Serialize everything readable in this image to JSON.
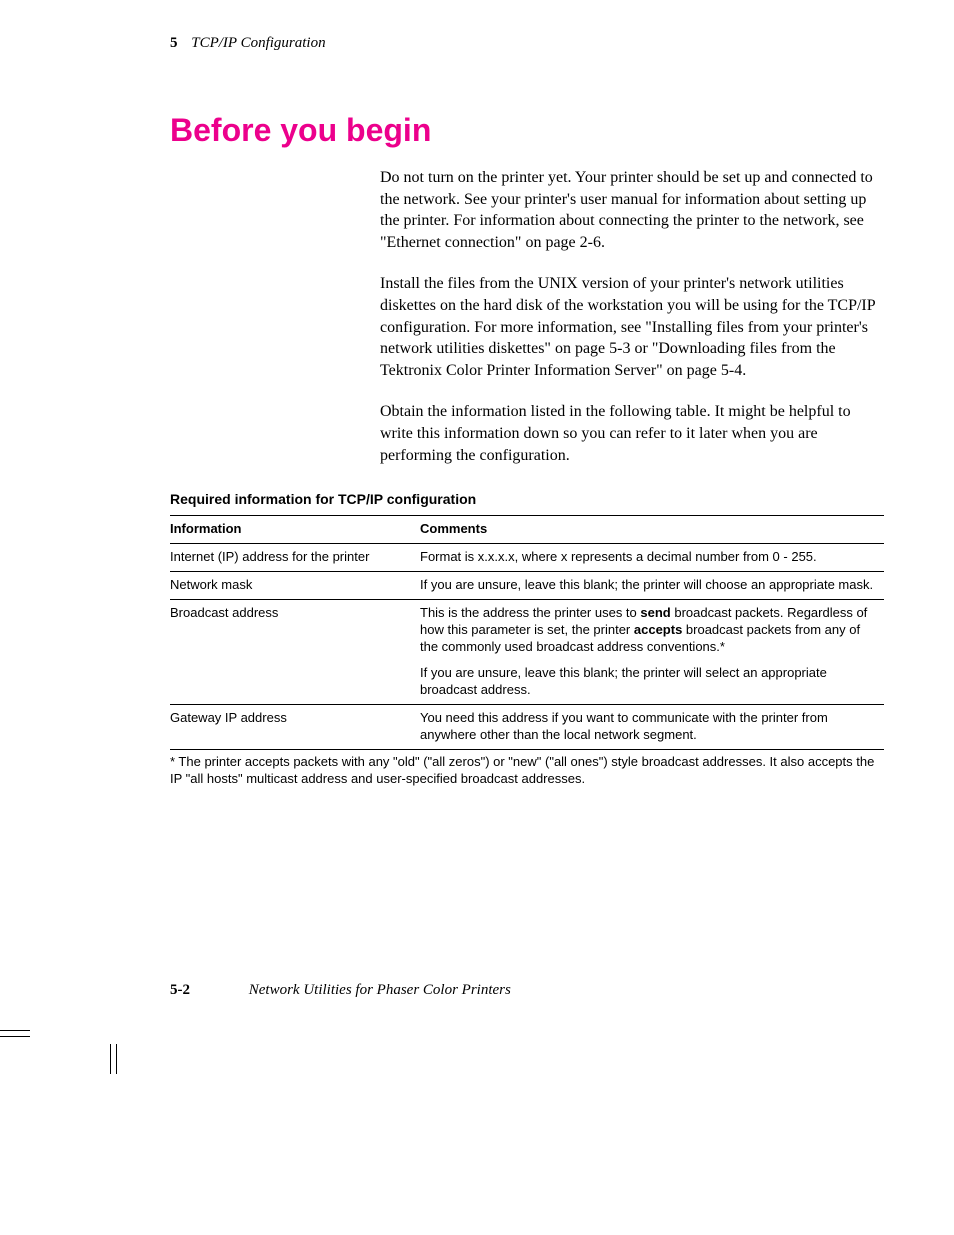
{
  "header": {
    "chapter_number": "5",
    "chapter_title": "TCP/IP Configuration"
  },
  "section": {
    "title": "Before you begin",
    "title_color": "#ec008c",
    "paragraphs": [
      "Do not turn on the printer yet.  Your printer should be set up and connected to the network.  See your printer's user manual for information about setting up the printer.  For information about connecting the printer to the network, see \"Ethernet connection\" on page 2-6.",
      "Install the files from the UNIX version of your printer's network utilities diskettes on the hard disk of the workstation you will be using for the TCP/IP configuration.  For more information, see \"Installing files from your printer's network utilities diskettes\" on page 5-3 or \"Downloading files from the Tektronix Color Printer Information Server\" on page 5-4.",
      "Obtain the information listed in the following table.  It might be helpful to write this information down so you can refer to it later when you are performing the configuration."
    ]
  },
  "table": {
    "caption": "Required information for TCP/IP configuration",
    "columns": [
      "Information",
      "Comments"
    ],
    "rows": [
      {
        "info": "Internet (IP) address for the printer",
        "comment_html": "Format is x.x.x.x, where x represents a decimal number from 0 - 255."
      },
      {
        "info": "Network mask",
        "comment_html": "If you are unsure, leave this blank; the printer will choose an appropriate mask."
      },
      {
        "info": "Broadcast address",
        "comment_p1_pre": "This is the address the printer uses to ",
        "comment_p1_b1": "send",
        "comment_p1_mid": " broadcast packets.  Regardless of how this parameter is set, the printer ",
        "comment_p1_b2": "accepts",
        "comment_p1_post": " broadcast packets from any of the commonly used broadcast address conventions.*",
        "comment_p2": "If you are unsure, leave this blank; the printer will select an appropriate broadcast address."
      },
      {
        "info": "Gateway IP address",
        "comment_html": "You need this address if you want to communicate with the printer from anywhere other than the local network segment."
      }
    ],
    "footnote": "* The printer accepts packets with any \"old\" (\"all zeros\") or \"new\" (\"all ones\") style broadcast addresses.  It also accepts the IP \"all hosts\" multicast address and user-specified broadcast addresses."
  },
  "footer": {
    "page_number": "5-2",
    "book_title": "Network Utilities for Phaser Color Printers"
  },
  "fonts": {
    "body_family": "Palatino",
    "body_size_pt": 11,
    "heading_family": "Helvetica",
    "heading_size_pt": 24,
    "table_family": "Helvetica",
    "table_size_pt": 9
  },
  "colors": {
    "text": "#000000",
    "background": "#ffffff",
    "accent": "#ec008c",
    "rule": "#000000"
  }
}
